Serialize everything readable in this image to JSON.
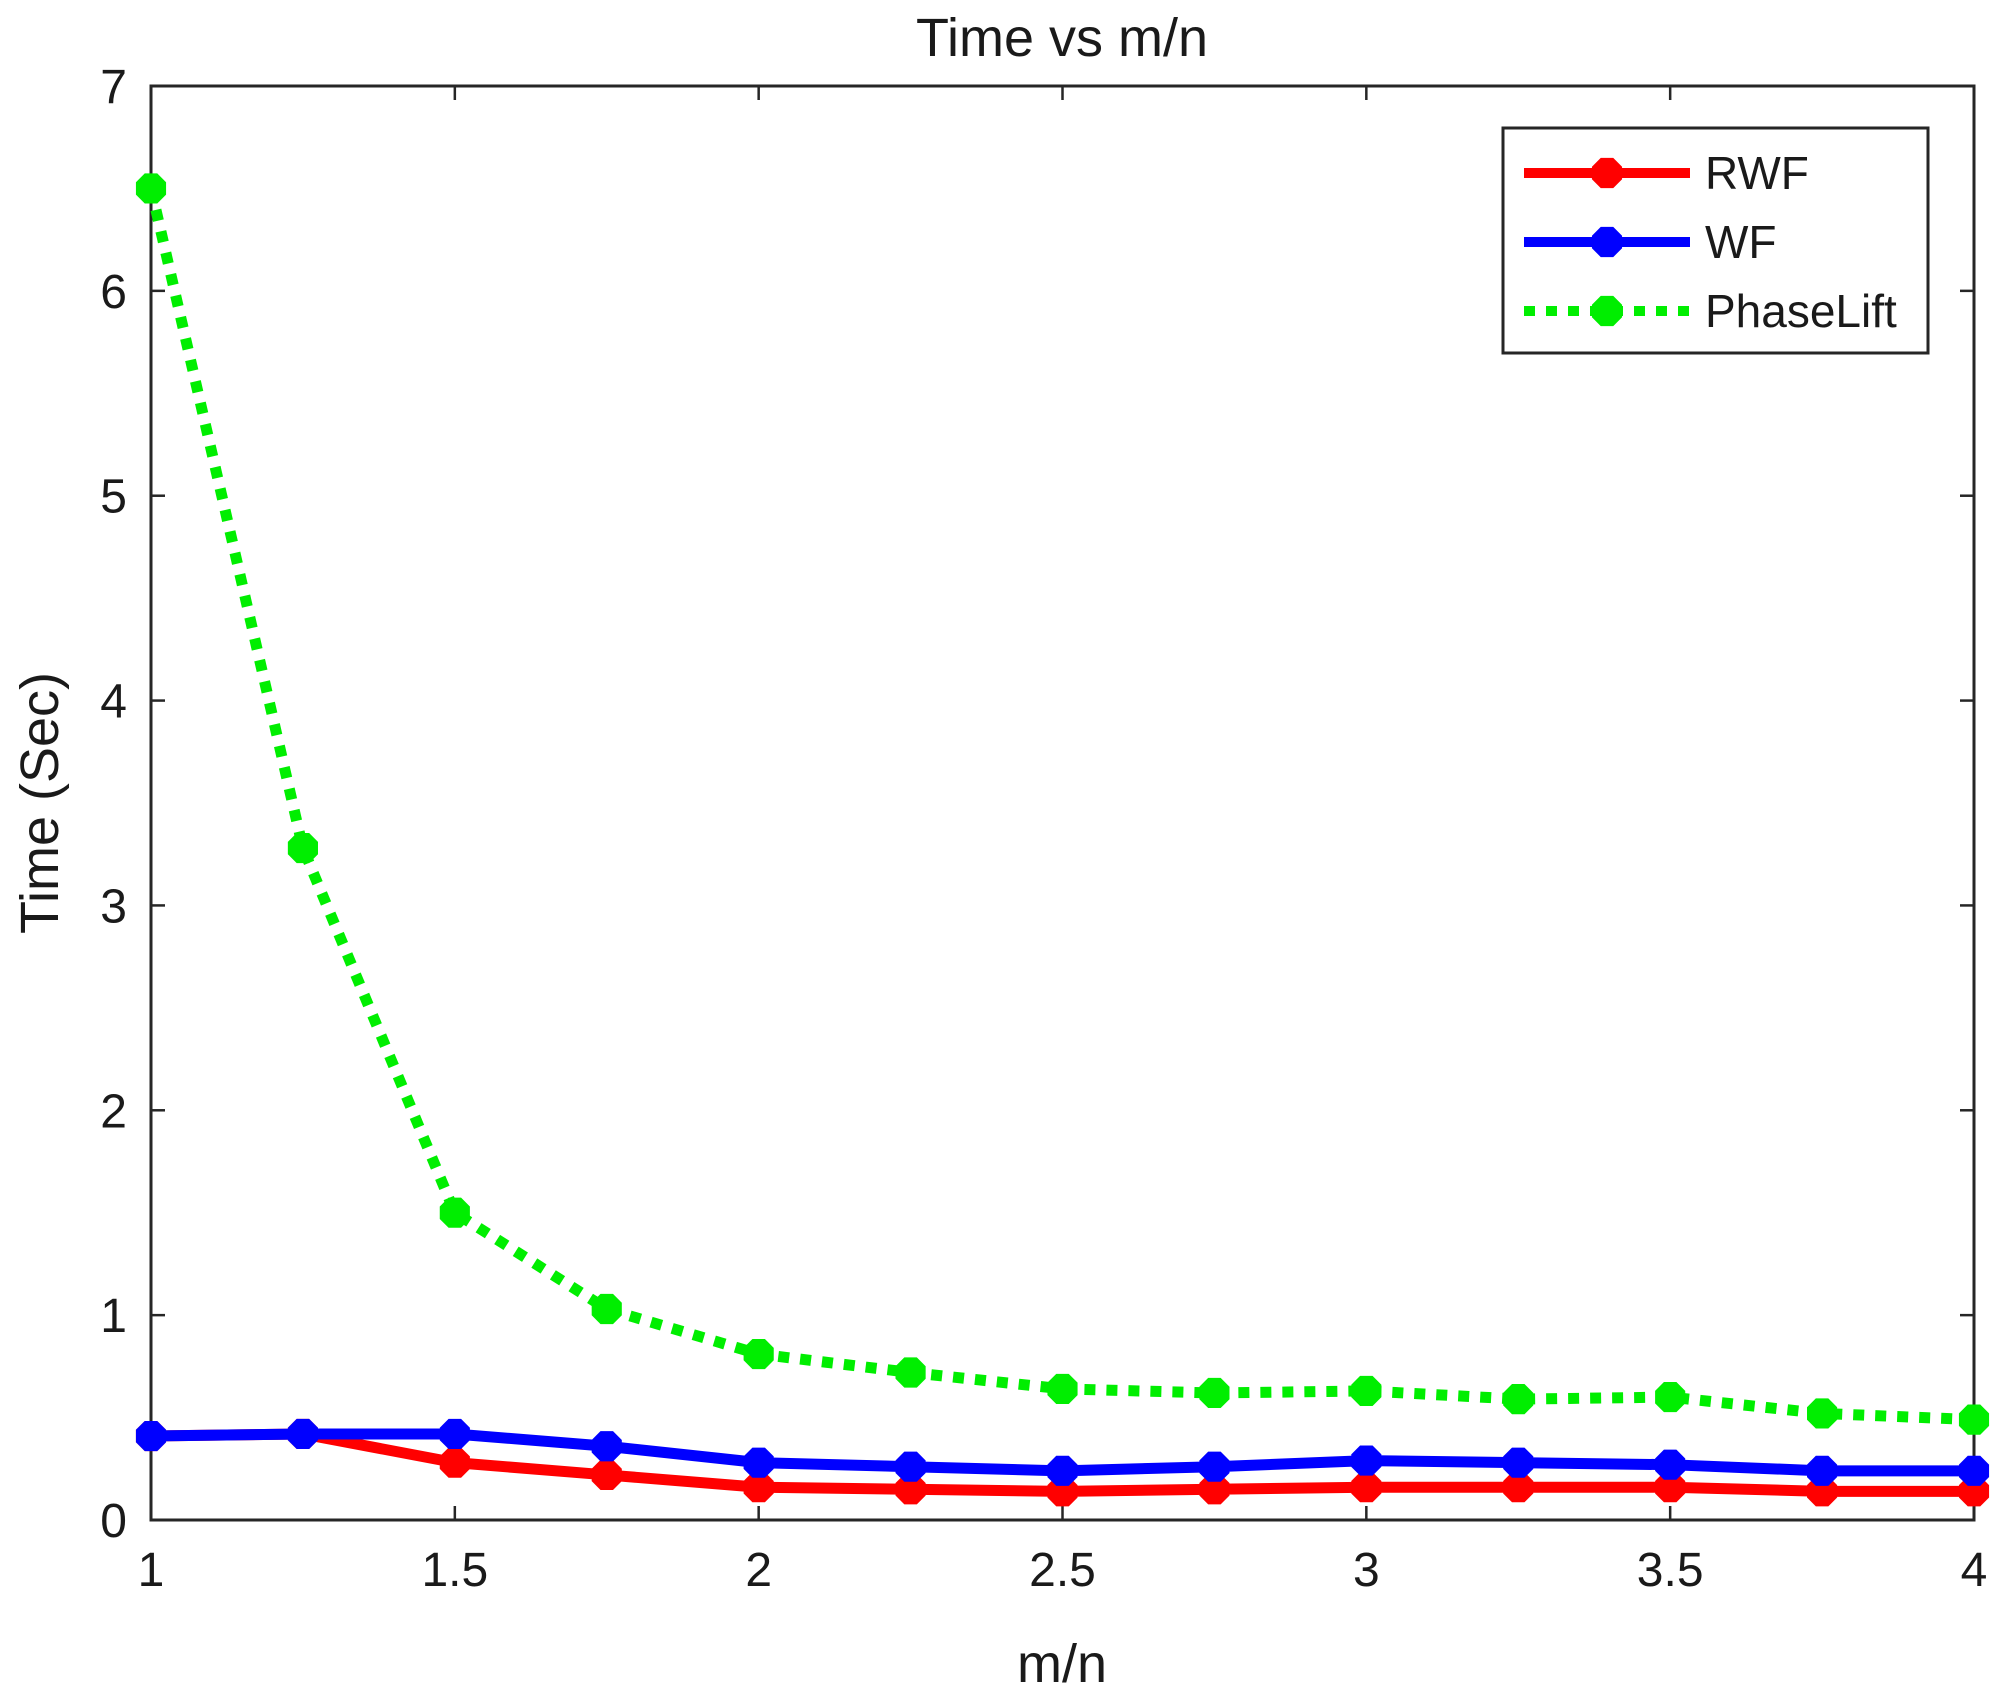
{
  "chart_data": {
    "type": "line",
    "title": "Time vs m/n",
    "xlabel": "m/n",
    "ylabel": "Time (Sec)",
    "xlim": [
      1,
      4
    ],
    "ylim": [
      0,
      7
    ],
    "xticks": [
      1,
      1.5,
      2,
      2.5,
      3,
      3.5,
      4
    ],
    "xtick_labels": [
      "1",
      "1.5",
      "2",
      "2.5",
      "3",
      "3.5",
      "4"
    ],
    "yticks": [
      0,
      1,
      2,
      3,
      4,
      5,
      6,
      7
    ],
    "ytick_labels": [
      "0",
      "1",
      "2",
      "3",
      "4",
      "5",
      "6",
      "7"
    ],
    "grid": false,
    "legend_position": "top-right",
    "x": [
      1,
      1.25,
      1.5,
      1.75,
      2,
      2.25,
      2.5,
      2.75,
      3,
      3.25,
      3.5,
      3.75,
      4
    ],
    "series": [
      {
        "name": "RWF",
        "color": "#ff0000",
        "style": "solid",
        "values": [
          0.41,
          0.42,
          0.28,
          0.22,
          0.16,
          0.15,
          0.14,
          0.15,
          0.16,
          0.16,
          0.16,
          0.14,
          0.14
        ]
      },
      {
        "name": "WF",
        "color": "#0000ff",
        "style": "solid",
        "values": [
          0.41,
          0.42,
          0.42,
          0.36,
          0.28,
          0.26,
          0.24,
          0.26,
          0.29,
          0.28,
          0.27,
          0.24,
          0.24
        ]
      },
      {
        "name": "PhaseLift",
        "color": "#00ee00",
        "style": "dotted",
        "values": [
          6.5,
          3.28,
          1.5,
          1.03,
          0.81,
          0.72,
          0.64,
          0.62,
          0.63,
          0.59,
          0.6,
          0.52,
          0.49
        ]
      }
    ]
  }
}
